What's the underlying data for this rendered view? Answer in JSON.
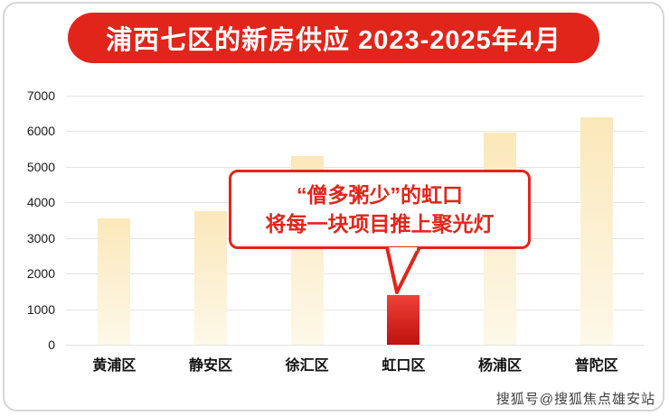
{
  "header": {
    "title": "浦西七区的新房供应 2023-2025年4月"
  },
  "chart_data": {
    "type": "bar",
    "title": "浦西七区的新房供应 2023-2025年4月",
    "categories": [
      "黄浦区",
      "静安区",
      "徐汇区",
      "虹口区",
      "杨浦区",
      "普陀区"
    ],
    "values": [
      3550,
      3750,
      5300,
      1400,
      5950,
      6400
    ],
    "xlabel": "",
    "ylabel": "",
    "ylim": [
      0,
      7000
    ],
    "yticks": [
      0,
      1000,
      2000,
      3000,
      4000,
      5000,
      6000,
      7000
    ],
    "grid": true,
    "legend": "none",
    "highlight_category": "虹口区",
    "highlight_index": 3,
    "annotation": "“僧多粥少”的虹口 将每一块项目推上聚光灯"
  },
  "callout": {
    "line1": "“僧多粥少”的虹口",
    "line2": "将每一块项目推上聚光灯"
  },
  "watermark": "搜狐号@搜狐焦点雄安站",
  "colors": {
    "accent_red": "#e1251b",
    "bar_top": "#fbe8ba",
    "bar_bottom": "#fdf8e8",
    "bar_red_top": "#ef4137",
    "bar_red_bottom": "#c0120e",
    "grid": "#e4e4e4",
    "border": "#d6d6d6"
  }
}
